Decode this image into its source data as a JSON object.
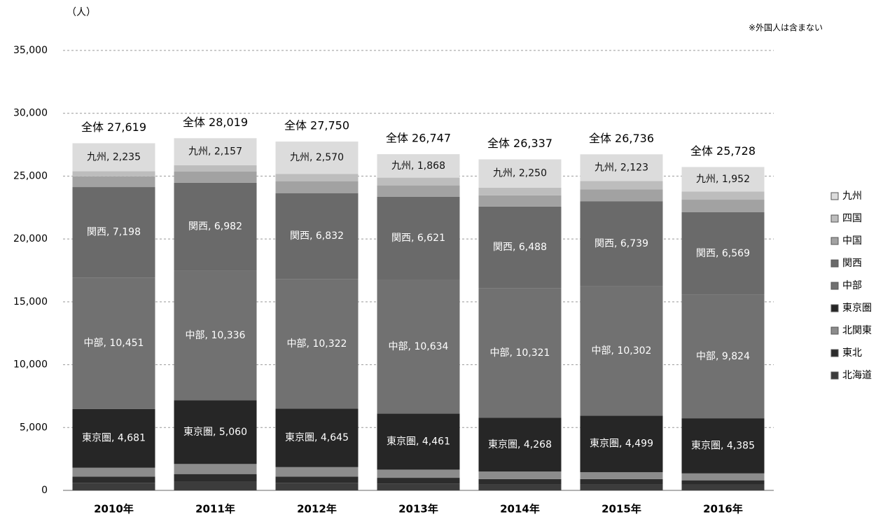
{
  "chart_data": {
    "type": "stacked_bar",
    "unit_label": "（人）",
    "note": "※外国人は含まない",
    "categories": [
      "2010年",
      "2011年",
      "2012年",
      "2013年",
      "2014年",
      "2015年",
      "2016年"
    ],
    "totals": [
      "全体 27,619",
      "全体 28,019",
      "全体 27,750",
      "全体 26,747",
      "全体 26,337",
      "全体 26,736",
      "全体 25,728"
    ],
    "series": [
      {
        "name": "北海道",
        "color": "#3c3c3c",
        "values": [
          600,
          700,
          600,
          550,
          500,
          500,
          450
        ]
      },
      {
        "name": "東北",
        "color": "#2c2c2c",
        "values": [
          500,
          600,
          500,
          450,
          400,
          400,
          350
        ]
      },
      {
        "name": "北関東",
        "color": "#8c8c8c",
        "values": [
          700,
          800,
          750,
          650,
          600,
          550,
          550
        ]
      },
      {
        "name": "東京圏",
        "color": "#262626",
        "values": [
          4681,
          5060,
          4645,
          4461,
          4268,
          4499,
          4385
        ],
        "value_labels": [
          "東京圏, 4,681",
          "東京圏, 5,060",
          "東京圏, 4,645",
          "東京圏, 4,461",
          "東京圏, 4,268",
          "東京圏, 4,499",
          "東京圏, 4,385"
        ]
      },
      {
        "name": "中部",
        "color": "#717171",
        "values": [
          10451,
          10336,
          10322,
          10634,
          10321,
          10302,
          9824
        ],
        "value_labels": [
          "中部, 10,451",
          "中部, 10,336",
          "中部, 10,322",
          "中部, 10,634",
          "中部, 10,321",
          "中部, 10,302",
          "中部, 9,824"
        ]
      },
      {
        "name": "関西",
        "color": "#6a6a6a",
        "values": [
          7198,
          6982,
          6832,
          6621,
          6488,
          6739,
          6569
        ],
        "value_labels": [
          "関西, 7,198",
          "関西, 6,982",
          "関西, 6,832",
          "関西, 6,621",
          "関西, 6,488",
          "関西, 6,739",
          "関西, 6,569"
        ]
      },
      {
        "name": "中国",
        "color": "#a2a2a2",
        "values": [
          850,
          900,
          950,
          900,
          900,
          950,
          1000
        ]
      },
      {
        "name": "四国",
        "color": "#bdbdbd",
        "values": [
          404,
          484,
          581,
          613,
          610,
          673,
          648
        ]
      },
      {
        "name": "九州",
        "color": "#dcdcdc",
        "values": [
          2235,
          2157,
          2570,
          1868,
          2250,
          2123,
          1952
        ],
        "value_labels": [
          "九州, 2,235",
          "九州, 2,157",
          "九州, 2,570",
          "九州, 1,868",
          "九州, 2,250",
          "九州, 2,123",
          "九州, 1,952"
        ]
      }
    ],
    "ylim": [
      0,
      35000
    ],
    "yticks": [
      0,
      {
        "value": 5000,
        "label": "5,000"
      },
      {
        "value": 10000,
        "label": "10,000"
      },
      {
        "value": 15000,
        "label": "15,000"
      },
      {
        "value": 20000,
        "label": "20,000"
      },
      {
        "value": 25000,
        "label": "25,000"
      },
      {
        "value": 30000,
        "label": "30,000"
      },
      {
        "value": 35000,
        "label": "35,000"
      }
    ],
    "grid": true
  }
}
